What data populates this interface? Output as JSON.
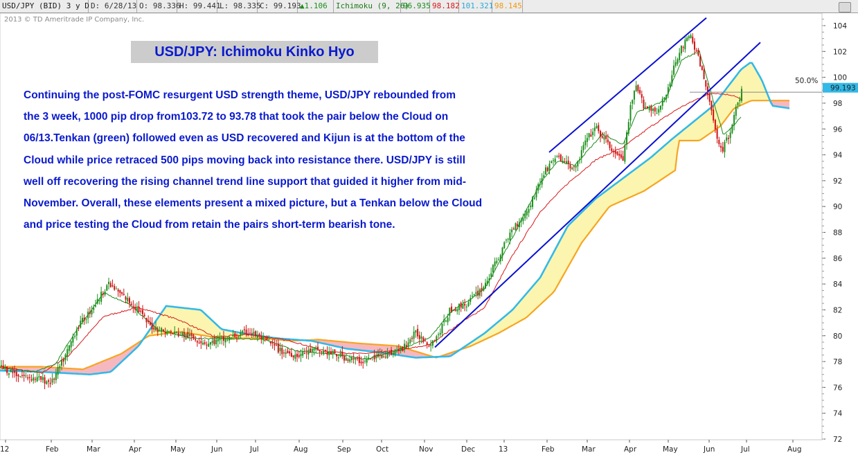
{
  "header": {
    "symbol": "USD/JPY (BID) 3 y D",
    "date": "D: 6/28/13",
    "open": "O: 98.336",
    "high": "H: 99.441",
    "low": "L: 98.335",
    "close": "C: 99.193",
    "change": "1.106",
    "indicator": "Ichimoku (9, 26)",
    "tenkan_value": "96.935",
    "kijun_value": "98.182",
    "spanA_value": "101.321",
    "spanB_value": "98.145"
  },
  "copyright": "2013 © TD Ameritrade IP Company, Inc.",
  "title": "USD/JPY: Ichimoku Kinko Hyo",
  "annotation_lines": [
    "Continuing the post-FOMC resurgent USD strength theme, USD/JPY rebounded from",
    "the 3 week, 1000 pip drop from103.72 to 93.78 that took the pair below the Cloud on",
    "06/13.Tenkan (green) followed even as USD recovered and Kijun is at the bottom of the",
    "Cloud while price retraced 500 pips moving back into resistance there. USD/JPY is still",
    "well off recovering the rising channel trend line support that guided it higher from mid-",
    "November.  Overall, these elements present a mixed picture, but a Tenkan below the Cloud",
    "and price testing the Cloud from retain the pairs short-term  bearish tone."
  ],
  "colors": {
    "up_candle": "#1a8f1a",
    "down_candle": "#d01010",
    "tenkan": "#1a8a1a",
    "kijun": "#d81818",
    "span_a": "#33b9e8",
    "span_b": "#f7a520",
    "cloud_bull": "#fbf5b0",
    "cloud_bear": "#f6b8c0",
    "channel": "#0a10d0",
    "price_tag": "#33b9e8",
    "fib_line": "#888888"
  },
  "chart_data": {
    "type": "candlestick",
    "ylim": [
      72,
      105
    ],
    "y_ticks": [
      72,
      74,
      76,
      78,
      80,
      82,
      84,
      86,
      88,
      90,
      92,
      94,
      96,
      98,
      100,
      102,
      104
    ],
    "x_ticks": [
      "12",
      "Feb",
      "Mar",
      "Apr",
      "May",
      "Jun",
      "Jul",
      "Aug",
      "Sep",
      "Oct",
      "Nov",
      "Dec",
      "13",
      "Feb",
      "Mar",
      "Apr",
      "May",
      "Jun",
      "Jul",
      "Aug"
    ],
    "fib_label": "50.0%",
    "last_price": "99.193",
    "price_key": [
      [
        0,
        77.6
      ],
      [
        30,
        76.9
      ],
      [
        60,
        76.6
      ],
      [
        75,
        76.4
      ],
      [
        95,
        78.5
      ],
      [
        110,
        80.5
      ],
      [
        140,
        82.6
      ],
      [
        155,
        84.0
      ],
      [
        175,
        83.2
      ],
      [
        200,
        82.0
      ],
      [
        215,
        80.8
      ],
      [
        240,
        80.3
      ],
      [
        270,
        80.0
      ],
      [
        300,
        79.4
      ],
      [
        330,
        79.8
      ],
      [
        360,
        80.3
      ],
      [
        385,
        79.6
      ],
      [
        405,
        78.8
      ],
      [
        430,
        78.5
      ],
      [
        455,
        78.9
      ],
      [
        480,
        78.6
      ],
      [
        505,
        78.2
      ],
      [
        525,
        78.0
      ],
      [
        550,
        78.5
      ],
      [
        580,
        78.9
      ],
      [
        600,
        80.2
      ],
      [
        620,
        79.4
      ],
      [
        632,
        80.0
      ],
      [
        650,
        82.0
      ],
      [
        675,
        82.5
      ],
      [
        700,
        83.9
      ],
      [
        720,
        86.1
      ],
      [
        740,
        88.3
      ],
      [
        760,
        89.5
      ],
      [
        785,
        92.5
      ],
      [
        800,
        93.8
      ],
      [
        815,
        93.5
      ],
      [
        830,
        92.8
      ],
      [
        845,
        95.0
      ],
      [
        860,
        96.1
      ],
      [
        875,
        95.0
      ],
      [
        890,
        94.0
      ],
      [
        900,
        93.6
      ],
      [
        910,
        97.5
      ],
      [
        918,
        99.3
      ],
      [
        930,
        97.8
      ],
      [
        950,
        97.4
      ],
      [
        965,
        99.0
      ],
      [
        975,
        101.3
      ],
      [
        988,
        102.6
      ],
      [
        997,
        103.2
      ],
      [
        1005,
        102.1
      ],
      [
        1015,
        100.2
      ],
      [
        1025,
        97.9
      ],
      [
        1035,
        95.5
      ],
      [
        1043,
        94.3
      ],
      [
        1052,
        95.5
      ],
      [
        1060,
        97.0
      ],
      [
        1068,
        98.5
      ],
      [
        1072,
        99.19
      ]
    ],
    "tenkan_key": [
      [
        0,
        77.5
      ],
      [
        50,
        77.2
      ],
      [
        80,
        77.8
      ],
      [
        110,
        80.4
      ],
      [
        150,
        83.3
      ],
      [
        185,
        82.5
      ],
      [
        230,
        80.4
      ],
      [
        280,
        79.8
      ],
      [
        330,
        79.8
      ],
      [
        380,
        79.7
      ],
      [
        430,
        78.8
      ],
      [
        480,
        78.6
      ],
      [
        530,
        78.2
      ],
      [
        580,
        79.0
      ],
      [
        620,
        79.8
      ],
      [
        650,
        81.8
      ],
      [
        700,
        83.6
      ],
      [
        740,
        87.6
      ],
      [
        780,
        91.8
      ],
      [
        805,
        93.5
      ],
      [
        830,
        93.2
      ],
      [
        870,
        95.6
      ],
      [
        900,
        94.8
      ],
      [
        920,
        97.3
      ],
      [
        960,
        98.2
      ],
      [
        985,
        101.4
      ],
      [
        1010,
        102.0
      ],
      [
        1030,
        98.2
      ],
      [
        1045,
        95.5
      ],
      [
        1060,
        96.3
      ],
      [
        1070,
        96.9
      ]
    ],
    "kijun_key": [
      [
        0,
        77.6
      ],
      [
        60,
        77.1
      ],
      [
        100,
        78.5
      ],
      [
        150,
        81.5
      ],
      [
        200,
        82.2
      ],
      [
        260,
        81.2
      ],
      [
        310,
        79.9
      ],
      [
        360,
        80.1
      ],
      [
        420,
        79.6
      ],
      [
        470,
        78.8
      ],
      [
        520,
        78.6
      ],
      [
        570,
        78.8
      ],
      [
        620,
        79.3
      ],
      [
        660,
        80.8
      ],
      [
        700,
        82.2
      ],
      [
        740,
        86.2
      ],
      [
        780,
        89.6
      ],
      [
        820,
        91.8
      ],
      [
        860,
        93.6
      ],
      [
        900,
        94.6
      ],
      [
        940,
        96.2
      ],
      [
        980,
        97.6
      ],
      [
        1010,
        98.4
      ],
      [
        1030,
        98.8
      ],
      [
        1060,
        98.6
      ],
      [
        1072,
        98.2
      ]
    ],
    "span_a_key": [
      [
        0,
        77.3
      ],
      [
        60,
        77.2
      ],
      [
        130,
        77.0
      ],
      [
        160,
        77.2
      ],
      [
        200,
        79.2
      ],
      [
        240,
        82.3
      ],
      [
        290,
        82.0
      ],
      [
        320,
        80.5
      ],
      [
        360,
        80.1
      ],
      [
        400,
        79.8
      ],
      [
        450,
        79.6
      ],
      [
        500,
        79.0
      ],
      [
        550,
        78.7
      ],
      [
        600,
        78.3
      ],
      [
        650,
        78.4
      ],
      [
        700,
        80.2
      ],
      [
        740,
        82.0
      ],
      [
        780,
        84.5
      ],
      [
        820,
        88.5
      ],
      [
        860,
        90.6
      ],
      [
        900,
        92.2
      ],
      [
        940,
        93.8
      ],
      [
        970,
        95.2
      ],
      [
        1000,
        96.5
      ],
      [
        1030,
        97.8
      ],
      [
        1050,
        99.2
      ],
      [
        1070,
        100.6
      ],
      [
        1085,
        101.2
      ],
      [
        1100,
        99.8
      ],
      [
        1115,
        97.8
      ],
      [
        1140,
        97.6
      ]
    ],
    "span_b_key": [
      [
        0,
        77.6
      ],
      [
        60,
        77.6
      ],
      [
        120,
        77.4
      ],
      [
        175,
        78.6
      ],
      [
        215,
        80.0
      ],
      [
        260,
        80.3
      ],
      [
        320,
        79.8
      ],
      [
        380,
        79.8
      ],
      [
        420,
        79.6
      ],
      [
        460,
        79.7
      ],
      [
        520,
        79.4
      ],
      [
        575,
        79.2
      ],
      [
        630,
        78.3
      ],
      [
        680,
        79.2
      ],
      [
        720,
        80.2
      ],
      [
        760,
        81.4
      ],
      [
        800,
        83.4
      ],
      [
        840,
        87.2
      ],
      [
        880,
        90.0
      ],
      [
        930,
        91.2
      ],
      [
        975,
        92.8
      ],
      [
        980,
        95.1
      ],
      [
        1010,
        95.1
      ],
      [
        1040,
        96.2
      ],
      [
        1060,
        97.6
      ],
      [
        1085,
        98.2
      ],
      [
        1115,
        98.2
      ],
      [
        1140,
        98.2
      ]
    ],
    "channel_upper": [
      [
        793,
        94.2
      ],
      [
        1020,
        104.6
      ]
    ],
    "channel_lower": [
      [
        628,
        79.1
      ],
      [
        1098,
        102.7
      ]
    ]
  }
}
